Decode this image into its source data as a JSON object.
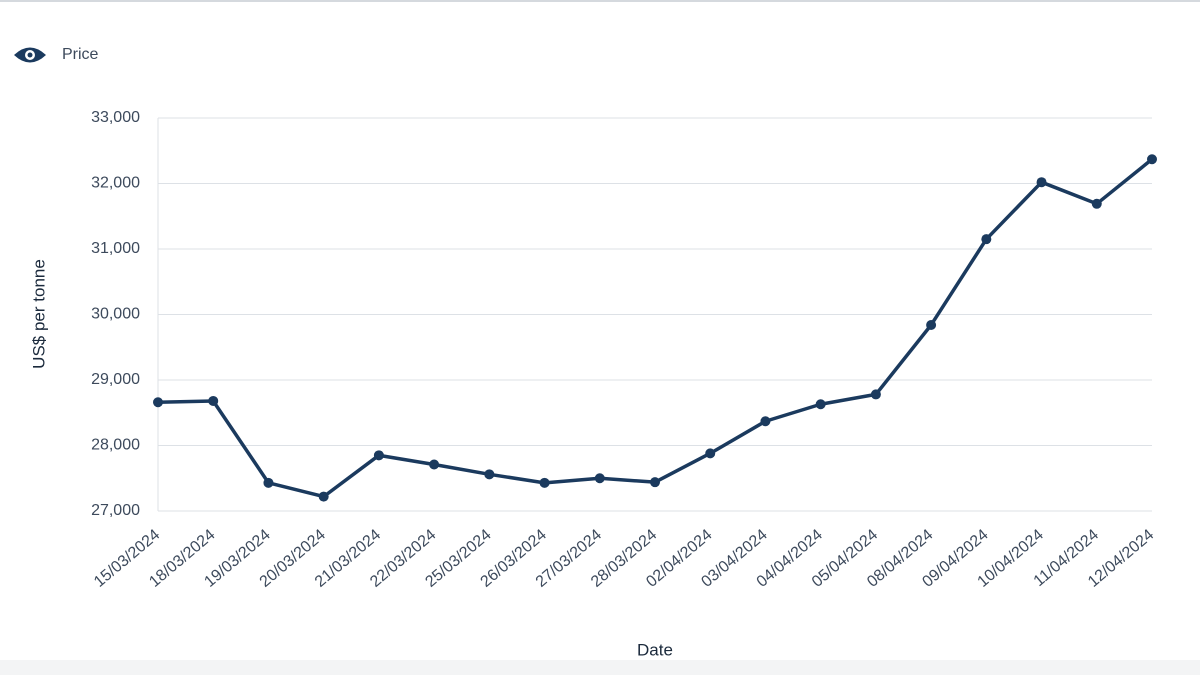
{
  "chart_data": {
    "type": "line",
    "categories": [
      "15/03/2024",
      "18/03/2024",
      "19/03/2024",
      "20/03/2024",
      "21/03/2024",
      "22/03/2024",
      "25/03/2024",
      "26/03/2024",
      "27/03/2024",
      "28/03/2024",
      "02/04/2024",
      "03/04/2024",
      "04/04/2024",
      "05/04/2024",
      "08/04/2024",
      "09/04/2024",
      "10/04/2024",
      "11/04/2024",
      "12/04/2024"
    ],
    "series": [
      {
        "name": "Price",
        "color": "#1b3a5e",
        "values": [
          28660,
          28680,
          27430,
          27220,
          27850,
          27710,
          27560,
          27430,
          27500,
          27440,
          27880,
          28370,
          28630,
          28780,
          29840,
          31150,
          32020,
          31690,
          32370
        ]
      }
    ],
    "x_label": "Date",
    "y_label": "US$ per tonne",
    "ylim": [
      27000,
      33000
    ],
    "yticks": [
      {
        "value": 27000,
        "label": "27,000"
      },
      {
        "value": 28000,
        "label": "28,000"
      },
      {
        "value": 29000,
        "label": "29,000"
      },
      {
        "value": 30000,
        "label": "30,000"
      },
      {
        "value": 31000,
        "label": "31,000"
      },
      {
        "value": 32000,
        "label": "32,000"
      },
      {
        "value": 33000,
        "label": "33,000"
      }
    ],
    "grid": true
  }
}
